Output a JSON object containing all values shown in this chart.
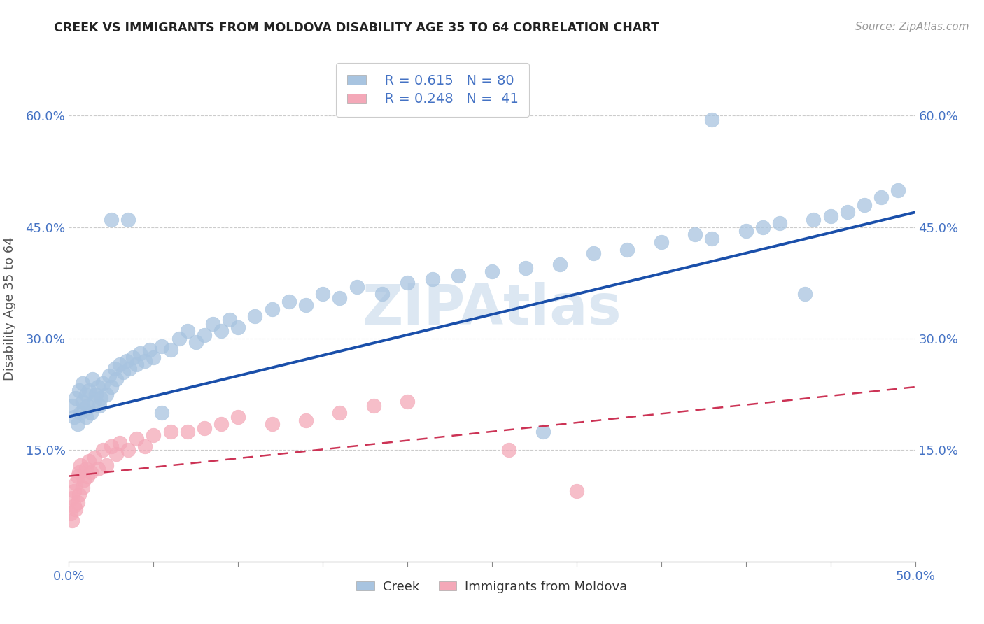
{
  "title": "CREEK VS IMMIGRANTS FROM MOLDOVA DISABILITY AGE 35 TO 64 CORRELATION CHART",
  "source": "Source: ZipAtlas.com",
  "ylabel": "Disability Age 35 to 64",
  "xlim": [
    0.0,
    0.5
  ],
  "ylim": [
    0.0,
    0.68
  ],
  "xtick_vals": [
    0.0,
    0.05,
    0.1,
    0.15,
    0.2,
    0.25,
    0.3,
    0.35,
    0.4,
    0.45,
    0.5
  ],
  "ytick_labels": [
    "15.0%",
    "30.0%",
    "45.0%",
    "60.0%"
  ],
  "ytick_vals": [
    0.15,
    0.3,
    0.45,
    0.6
  ],
  "creek_color": "#a8c4e0",
  "moldova_color": "#f4a8b8",
  "creek_line_color": "#1a4faa",
  "moldova_line_color": "#cc3355",
  "legend_creek_r": "0.615",
  "legend_creek_n": "80",
  "legend_moldova_r": "0.248",
  "legend_moldova_n": "41",
  "creek_line_x0": 0.0,
  "creek_line_y0": 0.195,
  "creek_line_x1": 0.5,
  "creek_line_y1": 0.47,
  "moldova_line_x0": 0.0,
  "moldova_line_y0": 0.115,
  "moldova_line_x1": 0.5,
  "moldova_line_y1": 0.235,
  "background_color": "#ffffff",
  "grid_color": "#cccccc",
  "title_color": "#222222",
  "axis_label_color": "#555555",
  "watermark_color": "#c5d8ea",
  "watermark_text": "ZIPAtlas",
  "creek_x": [
    0.002,
    0.003,
    0.004,
    0.005,
    0.006,
    0.007,
    0.008,
    0.008,
    0.009,
    0.01,
    0.01,
    0.011,
    0.012,
    0.013,
    0.014,
    0.015,
    0.016,
    0.017,
    0.018,
    0.019,
    0.02,
    0.022,
    0.024,
    0.025,
    0.027,
    0.028,
    0.03,
    0.032,
    0.034,
    0.036,
    0.038,
    0.04,
    0.042,
    0.045,
    0.048,
    0.05,
    0.055,
    0.06,
    0.065,
    0.07,
    0.075,
    0.08,
    0.085,
    0.09,
    0.095,
    0.1,
    0.11,
    0.12,
    0.13,
    0.14,
    0.15,
    0.16,
    0.17,
    0.185,
    0.2,
    0.215,
    0.23,
    0.25,
    0.27,
    0.29,
    0.31,
    0.33,
    0.35,
    0.37,
    0.38,
    0.4,
    0.41,
    0.42,
    0.44,
    0.45,
    0.46,
    0.47,
    0.48,
    0.49,
    0.025,
    0.035,
    0.055,
    0.28,
    0.38,
    0.435
  ],
  "creek_y": [
    0.21,
    0.195,
    0.22,
    0.185,
    0.23,
    0.2,
    0.215,
    0.24,
    0.205,
    0.225,
    0.195,
    0.21,
    0.23,
    0.2,
    0.245,
    0.215,
    0.225,
    0.235,
    0.21,
    0.22,
    0.24,
    0.225,
    0.25,
    0.235,
    0.26,
    0.245,
    0.265,
    0.255,
    0.27,
    0.26,
    0.275,
    0.265,
    0.28,
    0.27,
    0.285,
    0.275,
    0.29,
    0.285,
    0.3,
    0.31,
    0.295,
    0.305,
    0.32,
    0.31,
    0.325,
    0.315,
    0.33,
    0.34,
    0.35,
    0.345,
    0.36,
    0.355,
    0.37,
    0.36,
    0.375,
    0.38,
    0.385,
    0.39,
    0.395,
    0.4,
    0.415,
    0.42,
    0.43,
    0.44,
    0.435,
    0.445,
    0.45,
    0.455,
    0.46,
    0.465,
    0.47,
    0.48,
    0.49,
    0.5,
    0.46,
    0.46,
    0.2,
    0.175,
    0.595,
    0.36
  ],
  "moldova_x": [
    0.001,
    0.002,
    0.002,
    0.003,
    0.003,
    0.004,
    0.004,
    0.005,
    0.005,
    0.006,
    0.006,
    0.007,
    0.008,
    0.009,
    0.01,
    0.011,
    0.012,
    0.013,
    0.015,
    0.017,
    0.02,
    0.022,
    0.025,
    0.028,
    0.03,
    0.035,
    0.04,
    0.045,
    0.05,
    0.06,
    0.07,
    0.08,
    0.09,
    0.1,
    0.12,
    0.14,
    0.16,
    0.18,
    0.2,
    0.26,
    0.3
  ],
  "moldova_y": [
    0.065,
    0.085,
    0.055,
    0.095,
    0.075,
    0.105,
    0.07,
    0.115,
    0.08,
    0.12,
    0.09,
    0.13,
    0.1,
    0.11,
    0.125,
    0.115,
    0.135,
    0.12,
    0.14,
    0.125,
    0.15,
    0.13,
    0.155,
    0.145,
    0.16,
    0.15,
    0.165,
    0.155,
    0.17,
    0.175,
    0.175,
    0.18,
    0.185,
    0.195,
    0.185,
    0.19,
    0.2,
    0.21,
    0.215,
    0.15,
    0.095
  ]
}
